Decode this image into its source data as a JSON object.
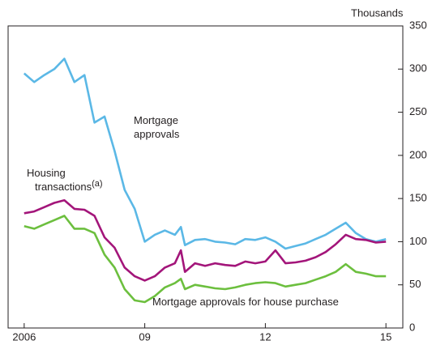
{
  "chart_data": {
    "type": "line",
    "unit_label": "Thousands",
    "x": [
      2006,
      2006.25,
      2006.5,
      2006.75,
      2007,
      2007.25,
      2007.5,
      2007.75,
      2008,
      2008.25,
      2008.5,
      2008.75,
      2009,
      2009.25,
      2009.5,
      2009.75,
      2009.9,
      2010,
      2010.25,
      2010.5,
      2010.75,
      2011,
      2011.25,
      2011.5,
      2011.75,
      2012,
      2012.25,
      2012.5,
      2012.75,
      2013,
      2013.25,
      2013.5,
      2013.75,
      2014,
      2014.25,
      2014.5,
      2014.75,
      2015
    ],
    "series": [
      {
        "label": [
          "Mortgage",
          "approvals"
        ],
        "color": "#5bb8e6",
        "values": [
          295,
          285,
          293,
          300,
          312,
          285,
          293,
          238,
          245,
          205,
          160,
          138,
          100,
          108,
          113,
          108,
          117,
          96,
          102,
          103,
          100,
          99,
          97,
          103,
          102,
          105,
          100,
          92,
          95,
          98,
          103,
          108,
          115,
          122,
          110,
          103,
          100,
          103
        ]
      },
      {
        "label": [
          "Housing",
          "transactions"
        ],
        "superscript": "(a)",
        "color": "#a3157a",
        "values": [
          133,
          135,
          140,
          145,
          148,
          138,
          137,
          130,
          105,
          93,
          70,
          60,
          55,
          60,
          70,
          75,
          90,
          65,
          75,
          72,
          75,
          73,
          72,
          77,
          75,
          77,
          90,
          75,
          76,
          78,
          82,
          88,
          97,
          108,
          103,
          102,
          99,
          100
        ]
      },
      {
        "label": [
          "Mortgage approvals for house purchase"
        ],
        "color": "#6cbf3e",
        "values": [
          118,
          115,
          120,
          125,
          130,
          115,
          115,
          110,
          85,
          70,
          45,
          32,
          30,
          37,
          47,
          52,
          57,
          45,
          50,
          48,
          46,
          45,
          47,
          50,
          52,
          53,
          52,
          48,
          50,
          52,
          56,
          60,
          65,
          74,
          65,
          63,
          60,
          60
        ]
      }
    ],
    "xlim": [
      2005.6,
      2015.42
    ],
    "xticks": [
      {
        "value": 2006,
        "label": "2006"
      },
      {
        "value": 2009,
        "label": "09"
      },
      {
        "value": 2012,
        "label": "12"
      },
      {
        "value": 2015,
        "label": "15"
      }
    ],
    "ylim": [
      0,
      350
    ],
    "yticks": [
      0,
      50,
      100,
      150,
      200,
      250,
      300,
      350
    ],
    "y_axis_side": "right"
  }
}
